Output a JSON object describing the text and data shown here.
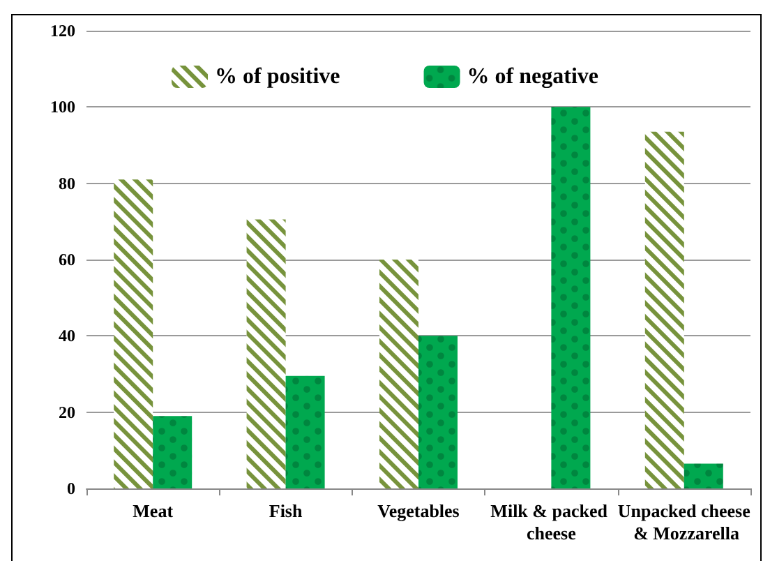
{
  "chart_data": {
    "type": "bar",
    "categories": [
      "Meat",
      "Fish",
      "Vegetables",
      "Milk & packed cheese",
      "Unpacked cheese & Mozzarella"
    ],
    "series": [
      {
        "name": "% of positive",
        "color": "#77933c",
        "values": [
          81,
          70.5,
          60,
          0,
          93.5
        ]
      },
      {
        "name": "% of negative",
        "color": "#00a84f",
        "values": [
          19,
          29.5,
          40,
          100,
          6.5
        ]
      }
    ],
    "ylim": [
      0,
      120
    ],
    "yticks": [
      0,
      20,
      40,
      60,
      80,
      100,
      120
    ],
    "grid": "y",
    "legend": "top"
  }
}
